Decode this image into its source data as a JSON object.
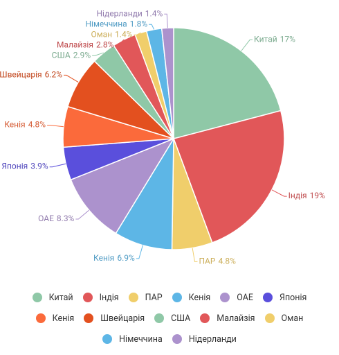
{
  "chart_data": {
    "type": "pie",
    "categories": [
      "Китай",
      "Індія",
      "ПАР",
      "Кенія",
      "ОАЕ",
      "Японія",
      "Кенія",
      "Швейцарія",
      "США",
      "Малайзія",
      "Оман",
      "Німеччина",
      "Нідерланди"
    ],
    "values": [
      17,
      19,
      4.8,
      6.9,
      8.3,
      3.9,
      4.8,
      6.2,
      2.9,
      2.8,
      1.4,
      1.8,
      1.4
    ],
    "value_labels": [
      "17%",
      "19%",
      "4.8%",
      "6.9%",
      "8.3%",
      "3.9%",
      "4.8%",
      "6.2%",
      "2.9%",
      "2.8%",
      "1.4%",
      "1.8%",
      "1.4%"
    ],
    "colors": [
      "#8fc8a7",
      "#e15759",
      "#f0ce6b",
      "#5db6e6",
      "#ac92cd",
      "#5a4fdc",
      "#fb6a3b",
      "#e3501f",
      "#8fc8a7",
      "#e15759",
      "#f0ce6b",
      "#5db6e6",
      "#ac92cd"
    ],
    "legend": "bottom"
  }
}
